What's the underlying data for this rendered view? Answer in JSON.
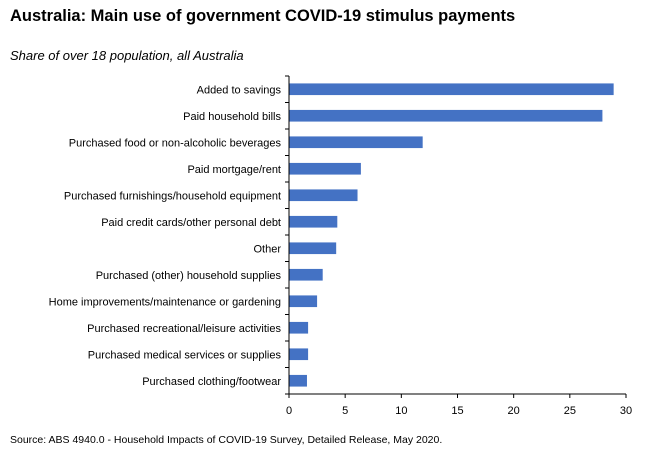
{
  "chart_data": {
    "type": "bar",
    "orientation": "horizontal",
    "title": "Australia: Main use of government COVID-19 stimulus payments",
    "subtitle": "Share of over 18 population, all Australia",
    "source": "Source: ABS 4940.0 - Household Impacts of COVID-19 Survey, Detailed Release, May 2020.",
    "categories": [
      "Added to savings",
      "Paid household bills",
      "Purchased food or non-alcoholic beverages",
      "Paid mortgage/rent",
      "Purchased furnishings/household equipment",
      "Paid credit cards/other personal debt",
      "Other",
      "Purchased (other) household supplies",
      "Home improvements/maintenance or gardening",
      "Purchased recreational/leisure activities",
      "Purchased medical services or supplies",
      "Purchased clothing/footwear"
    ],
    "values": [
      28.9,
      27.9,
      11.9,
      6.4,
      6.1,
      4.3,
      4.2,
      3.0,
      2.5,
      1.7,
      1.7,
      1.6
    ],
    "xlim": [
      0,
      30
    ],
    "xticks": [
      "0",
      "5",
      "10",
      "15",
      "20",
      "25",
      "30"
    ],
    "grid": false,
    "legend": "none",
    "bar_color": "#4472C4",
    "axis_color": "#000000"
  }
}
